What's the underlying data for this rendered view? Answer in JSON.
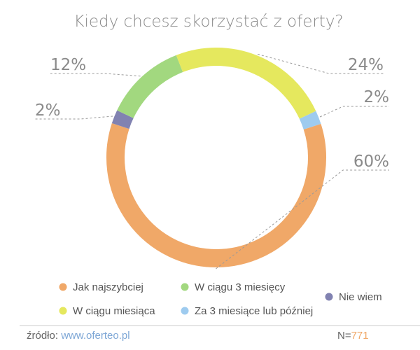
{
  "chart_data": {
    "type": "pie",
    "variant": "donut",
    "title": "Kiedy chcesz skorzystać z oferty?",
    "slices": [
      {
        "label": "Za 3 miesiące lub później",
        "value": 2,
        "value_label": "2%",
        "color": "#9ecbef"
      },
      {
        "label": "Jak najszybciej",
        "value": 60,
        "value_label": "60%",
        "color": "#f0a868"
      },
      {
        "label": "Nie wiem",
        "value": 2,
        "value_label": "2%",
        "color": "#8182b1"
      },
      {
        "label": "W ciągu 3 miesięcy",
        "value": 12,
        "value_label": "12%",
        "color": "#a2d87f"
      },
      {
        "label": "W ciągu miesiąca",
        "value": 24,
        "value_label": "24%",
        "color": "#e5e85e"
      }
    ],
    "legend": {
      "placement": "bottom",
      "items": [
        {
          "label": "Jak najszybciej",
          "color": "#f0a868"
        },
        {
          "label": "W ciągu 3 miesięcy",
          "color": "#a2d87f"
        },
        {
          "label": "Nie wiem",
          "color": "#8182b1"
        },
        {
          "label": "W ciągu miesiąca",
          "color": "#e5e85e"
        },
        {
          "label": "Za 3 miesiące lub później",
          "color": "#9ecbef"
        }
      ]
    }
  },
  "footer": {
    "source_label": "źródło:",
    "source_url": "www.oferteo.pl",
    "sample_label": "N=",
    "sample_value": "771"
  }
}
